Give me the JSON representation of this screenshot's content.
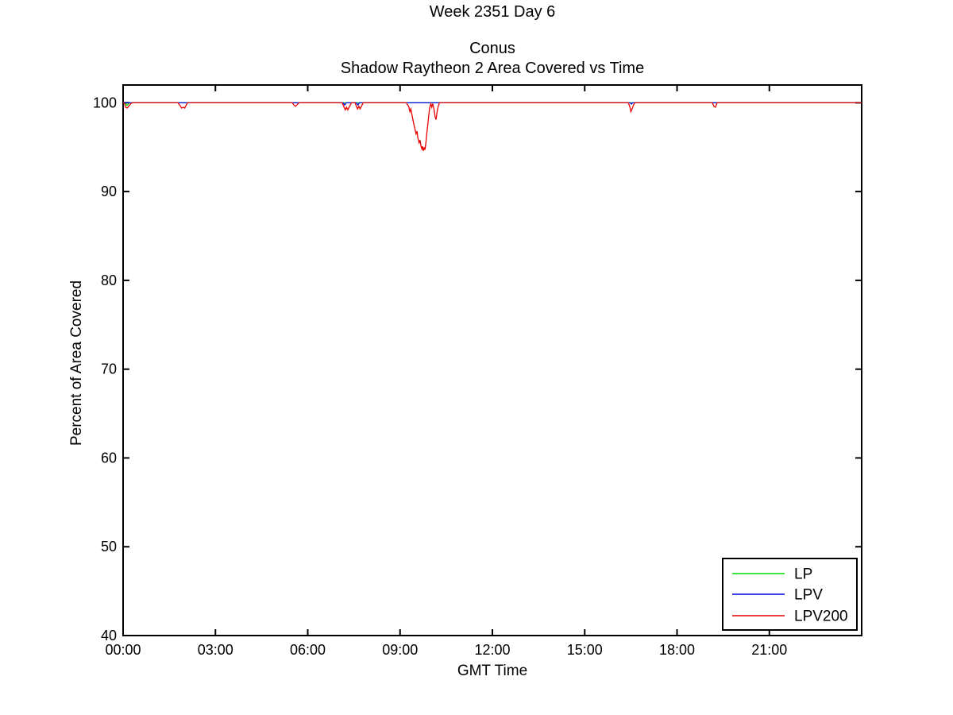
{
  "figure": {
    "suptitle": "Week 2351 Day 6",
    "title_line1": "Conus",
    "title_line2": "Shadow Raytheon 2 Area Covered vs Time"
  },
  "chart_data": {
    "type": "line",
    "title": "Conus / Shadow Raytheon 2 Area Covered vs Time",
    "suptitle": "Week 2351 Day 6",
    "xlabel": "GMT Time",
    "ylabel": "Percent of Area Covered",
    "xlim": [
      0,
      24
    ],
    "ylim": [
      40,
      102
    ],
    "grid": false,
    "axis_color": "#000000",
    "background_color": "#ffffff",
    "x_ticks": [
      {
        "value": 0,
        "label": "00:00"
      },
      {
        "value": 3,
        "label": "03:00"
      },
      {
        "value": 6,
        "label": "06:00"
      },
      {
        "value": 9,
        "label": "09:00"
      },
      {
        "value": 12,
        "label": "12:00"
      },
      {
        "value": 15,
        "label": "15:00"
      },
      {
        "value": 18,
        "label": "18:00"
      },
      {
        "value": 21,
        "label": "21:00"
      }
    ],
    "y_ticks": [
      {
        "value": 40,
        "label": "40"
      },
      {
        "value": 50,
        "label": "50"
      },
      {
        "value": 60,
        "label": "60"
      },
      {
        "value": 70,
        "label": "70"
      },
      {
        "value": 80,
        "label": "80"
      },
      {
        "value": 90,
        "label": "90"
      },
      {
        "value": 100,
        "label": "100"
      }
    ],
    "legend": {
      "position": "bottom-right",
      "border": true
    },
    "series": [
      {
        "name": "LP",
        "color": "#00dd00",
        "points": [
          [
            0,
            100
          ],
          [
            0.05,
            100
          ],
          [
            0.08,
            99.9
          ],
          [
            0.12,
            99.7
          ],
          [
            0.16,
            99.8
          ],
          [
            0.2,
            100
          ],
          [
            24,
            100
          ]
        ]
      },
      {
        "name": "LPV",
        "color": "#0000e0",
        "points": [
          [
            0,
            100
          ],
          [
            7.15,
            100
          ],
          [
            7.2,
            99.75
          ],
          [
            7.25,
            100
          ],
          [
            7.58,
            100
          ],
          [
            7.63,
            99.75
          ],
          [
            7.68,
            100
          ],
          [
            16.48,
            100
          ],
          [
            16.52,
            99.85
          ],
          [
            16.56,
            100
          ],
          [
            24,
            100
          ]
        ]
      },
      {
        "name": "LPV200",
        "color": "#e60000",
        "points": [
          [
            0,
            100
          ],
          [
            0.05,
            99.9
          ],
          [
            0.08,
            99.5
          ],
          [
            0.13,
            99.4
          ],
          [
            0.18,
            99.6
          ],
          [
            0.25,
            99.9
          ],
          [
            0.3,
            100
          ],
          [
            1.78,
            100
          ],
          [
            1.85,
            99.7
          ],
          [
            1.9,
            99.4
          ],
          [
            1.95,
            99.5
          ],
          [
            2.0,
            99.4
          ],
          [
            2.06,
            99.8
          ],
          [
            2.1,
            100
          ],
          [
            5.5,
            100
          ],
          [
            5.56,
            99.7
          ],
          [
            5.6,
            99.6
          ],
          [
            5.66,
            99.8
          ],
          [
            5.72,
            100
          ],
          [
            7.12,
            100
          ],
          [
            7.18,
            99.5
          ],
          [
            7.22,
            99.2
          ],
          [
            7.26,
            99.5
          ],
          [
            7.3,
            99.2
          ],
          [
            7.36,
            99.6
          ],
          [
            7.42,
            100
          ],
          [
            7.54,
            100
          ],
          [
            7.58,
            99.6
          ],
          [
            7.62,
            99.3
          ],
          [
            7.66,
            99.6
          ],
          [
            7.7,
            99.3
          ],
          [
            7.76,
            99.7
          ],
          [
            7.8,
            100
          ],
          [
            9.2,
            100
          ],
          [
            9.28,
            99.6
          ],
          [
            9.32,
            99.0
          ],
          [
            9.35,
            99.3
          ],
          [
            9.4,
            98.4
          ],
          [
            9.44,
            97.7
          ],
          [
            9.48,
            97.1
          ],
          [
            9.52,
            96.5
          ],
          [
            9.55,
            96.8
          ],
          [
            9.58,
            96.0
          ],
          [
            9.62,
            95.5
          ],
          [
            9.65,
            95.8
          ],
          [
            9.68,
            95.1
          ],
          [
            9.71,
            94.8
          ],
          [
            9.73,
            95.1
          ],
          [
            9.76,
            94.6
          ],
          [
            9.79,
            95.0
          ],
          [
            9.81,
            94.7
          ],
          [
            9.84,
            95.5
          ],
          [
            9.87,
            96.6
          ],
          [
            9.9,
            97.5
          ],
          [
            9.93,
            98.5
          ],
          [
            9.96,
            99.4
          ],
          [
            10.0,
            99.9
          ],
          [
            10.03,
            99.5
          ],
          [
            10.06,
            99.9
          ],
          [
            10.1,
            99.3
          ],
          [
            10.14,
            98.4
          ],
          [
            10.17,
            98.1
          ],
          [
            10.2,
            98.9
          ],
          [
            10.24,
            99.6
          ],
          [
            10.28,
            100
          ],
          [
            16.42,
            100
          ],
          [
            16.47,
            99.5
          ],
          [
            16.5,
            99.0
          ],
          [
            16.54,
            99.3
          ],
          [
            16.58,
            99.7
          ],
          [
            16.63,
            100
          ],
          [
            19.15,
            100
          ],
          [
            19.2,
            99.6
          ],
          [
            19.25,
            99.5
          ],
          [
            19.3,
            100
          ],
          [
            24,
            100
          ]
        ]
      }
    ]
  }
}
